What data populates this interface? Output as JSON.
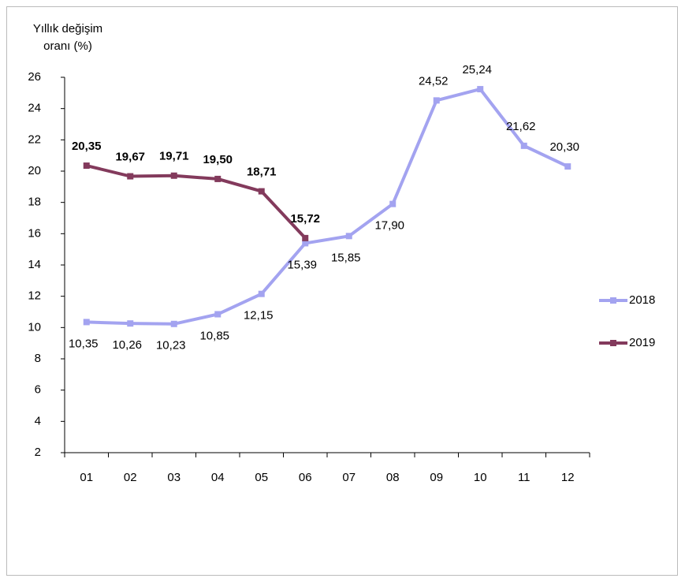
{
  "chart_data": {
    "type": "line",
    "y_label": "Yıllık değişim oranı (%)",
    "categories": [
      "01",
      "02",
      "03",
      "04",
      "05",
      "06",
      "07",
      "08",
      "09",
      "10",
      "11",
      "12"
    ],
    "series": [
      {
        "name": "2018",
        "color": "#a3a3f0",
        "values": [
          10.35,
          10.26,
          10.23,
          10.85,
          12.15,
          15.39,
          15.85,
          17.9,
          24.52,
          25.24,
          21.62,
          20.3
        ],
        "value_labels": [
          "10,35",
          "10,26",
          "10,23",
          "10,85",
          "12,15",
          "15,39",
          "15,85",
          "17,90",
          "24,52",
          "25,24",
          "21,62",
          "20,30"
        ]
      },
      {
        "name": "2019",
        "color": "#833a5c",
        "values": [
          20.35,
          19.67,
          19.71,
          19.5,
          18.71,
          15.72,
          null,
          null,
          null,
          null,
          null,
          null
        ],
        "value_labels": [
          "20,35",
          "19,67",
          "19,71",
          "19,50",
          "18,71",
          "15,72",
          null,
          null,
          null,
          null,
          null,
          null
        ]
      }
    ],
    "ylim": [
      2,
      26
    ],
    "yticks": [
      2,
      4,
      6,
      8,
      10,
      12,
      14,
      16,
      18,
      20,
      22,
      24,
      26
    ],
    "grid": false,
    "legend": "right"
  }
}
